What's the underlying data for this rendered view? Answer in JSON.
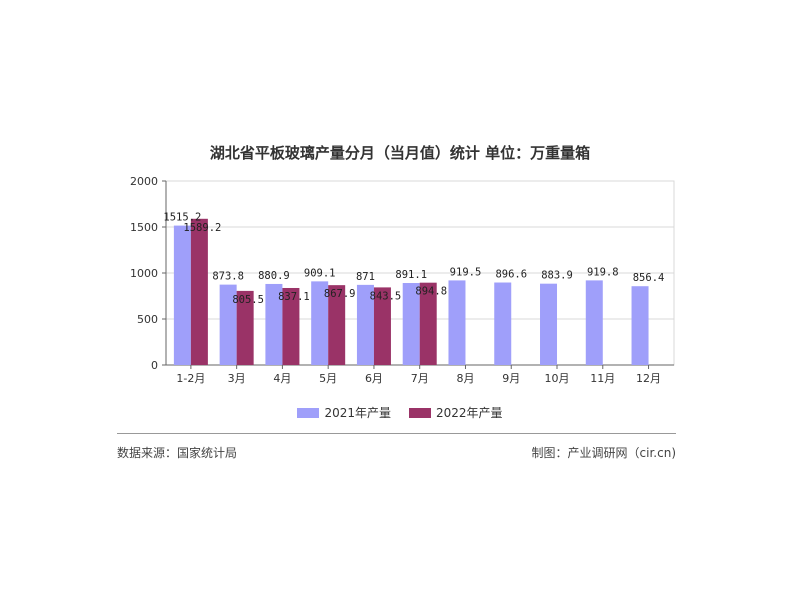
{
  "title": "湖北省平板玻璃产量分月（当月值）统计 单位：万重量箱",
  "footer": {
    "source": "数据来源：国家统计局",
    "credit": "制图：产业调研网（cir.cn)"
  },
  "colors": {
    "series_2021": "#9f9ffa",
    "series_2022": "#9a3367",
    "grid": "#d9d9d9",
    "axis": "#666666"
  },
  "chart_data": {
    "type": "bar",
    "title": "湖北省平板玻璃产量分月（当月值）统计 单位：万重量箱",
    "xlabel": "",
    "ylabel": "",
    "ylim": [
      0,
      2000
    ],
    "yticks": [
      0,
      500,
      1000,
      1500,
      2000
    ],
    "grid": true,
    "legend_position": "bottom",
    "categories": [
      "1-2月",
      "3月",
      "4月",
      "5月",
      "6月",
      "7月",
      "8月",
      "9月",
      "10月",
      "11月",
      "12月"
    ],
    "series": [
      {
        "name": "2021年产量",
        "values": [
          1515.2,
          873.8,
          880.9,
          909.1,
          871,
          891.1,
          919.5,
          896.6,
          883.9,
          919.8,
          856.4
        ],
        "labels": [
          "1515.2",
          "873.8",
          "880.9",
          "909.1",
          "871",
          "891.1",
          "919.5",
          "896.6",
          "883.9",
          "919.8",
          "856.4"
        ]
      },
      {
        "name": "2022年产量",
        "values": [
          1589.2,
          805.5,
          837.1,
          867.9,
          843.5,
          894.8,
          null,
          null,
          null,
          null,
          null
        ],
        "labels": [
          "1589.2",
          "805.5",
          "837.1",
          "867.9",
          "843.5",
          "894.8",
          null,
          null,
          null,
          null,
          null
        ]
      }
    ]
  }
}
